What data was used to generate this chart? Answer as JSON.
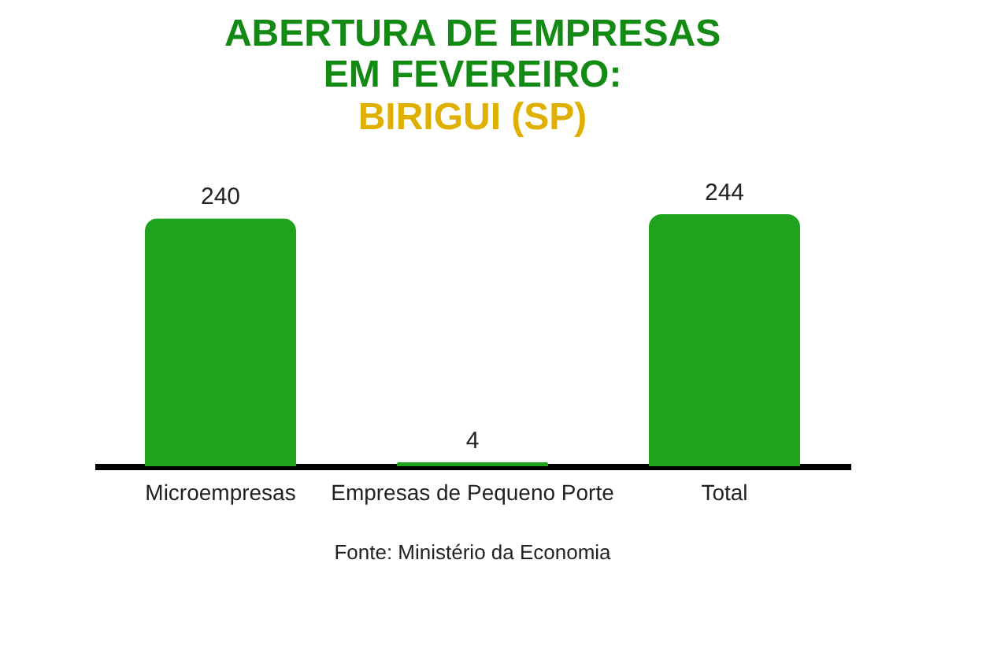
{
  "chart_data": {
    "type": "bar",
    "title": [
      "ABERTURA DE EMPRESAS",
      "EM FEVEREIRO:"
    ],
    "subtitle": "BIRIGUI (SP)",
    "categories": [
      "Microempresas",
      "Empresas de Pequeno Porte",
      "Total"
    ],
    "values": [
      240,
      4,
      244
    ],
    "color": "#1fa31f",
    "data_labels": true,
    "grid": false,
    "annotations": [
      "Fonte: Ministério da Economia"
    ]
  }
}
